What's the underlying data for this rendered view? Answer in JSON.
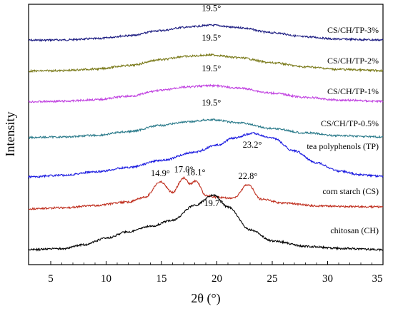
{
  "chart_data": {
    "type": "line",
    "title": "",
    "xlabel": "2θ (°)",
    "ylabel": "Intensity",
    "xlim": [
      3,
      35
    ],
    "xticks": [
      5,
      10,
      15,
      20,
      25,
      30,
      35
    ],
    "grid": false,
    "legend": "inline labels at right",
    "series": [
      {
        "name": "CS/CH/TP-3%",
        "color": "#1a1a80",
        "x": [
          3,
          6,
          9,
          12,
          15,
          17,
          19.5,
          22,
          25,
          28,
          31,
          35
        ],
        "y": [
          0.6,
          0.8,
          1.6,
          3.5,
          6.8,
          8.8,
          10.2,
          8.6,
          5.4,
          2.8,
          1.3,
          0.8
        ],
        "peaks": [
          {
            "x": 19.5,
            "label": "19.5°"
          }
        ]
      },
      {
        "name": "CS/CH/TP-2%",
        "color": "#7a7a1a",
        "x": [
          3,
          6,
          9,
          12,
          15,
          17,
          19.5,
          22,
          25,
          28,
          31,
          35
        ],
        "y": [
          0.5,
          0.8,
          1.8,
          4.0,
          7.8,
          9.8,
          10.8,
          9.0,
          5.8,
          3.2,
          1.6,
          0.8
        ],
        "peaks": [
          {
            "x": 19.5,
            "label": "19.5°"
          }
        ]
      },
      {
        "name": "CS/CH/TP-1%",
        "color": "#c040e0",
        "x": [
          3,
          6,
          9,
          12,
          15,
          17,
          19.5,
          22,
          25,
          28,
          31,
          35
        ],
        "y": [
          0.5,
          0.8,
          1.8,
          4.0,
          7.8,
          9.8,
          10.8,
          9.2,
          6.0,
          3.3,
          1.6,
          0.8
        ],
        "peaks": [
          {
            "x": 19.5,
            "label": "19.5°"
          }
        ]
      },
      {
        "name": "CS/CH/TP-0.5%",
        "color": "#2a7a8a",
        "x": [
          3,
          6,
          9,
          12,
          15,
          17,
          19.5,
          22,
          25,
          28,
          31,
          35
        ],
        "y": [
          0.5,
          0.8,
          1.8,
          4.2,
          8.2,
          10.2,
          11.8,
          9.8,
          6.2,
          3.4,
          1.6,
          0.8
        ],
        "peaks": [
          {
            "x": 19.5,
            "label": "19.5°"
          }
        ]
      },
      {
        "name": "tea polyphenols (TP)",
        "color": "#1a1ae0",
        "x": [
          3,
          6,
          9,
          12,
          15,
          18,
          20,
          21.5,
          23.2,
          25,
          27,
          29,
          31,
          33,
          35
        ],
        "y": [
          0.5,
          1.2,
          2.6,
          4.5,
          7.5,
          11.0,
          14.0,
          17.0,
          19.0,
          17.0,
          11.5,
          6.5,
          3.0,
          1.4,
          0.8
        ],
        "peaks": [
          {
            "x": 23.2,
            "label": "23.2°"
          }
        ]
      },
      {
        "name": "corn starch (CS)",
        "color": "#c03020",
        "x": [
          3,
          6,
          9,
          12,
          13.5,
          14.9,
          16,
          17,
          17.6,
          18.1,
          19,
          20,
          21.5,
          22.8,
          24,
          26,
          29,
          32,
          35
        ],
        "y": [
          0.5,
          1.0,
          2.2,
          4.0,
          6.5,
          14.5,
          9.0,
          16.5,
          13.5,
          15.0,
          7.5,
          6.5,
          6.0,
          13.0,
          5.5,
          3.5,
          2.0,
          1.6,
          1.5
        ],
        "peaks": [
          {
            "x": 14.9,
            "label": "14.9°"
          },
          {
            "x": 17.0,
            "label": "17.0°"
          },
          {
            "x": 18.1,
            "label": "18.1°"
          },
          {
            "x": 22.8,
            "label": "22.8°"
          }
        ]
      },
      {
        "name": "chitosan (CH)",
        "color": "#000000",
        "x": [
          3,
          6,
          8,
          10,
          12,
          14,
          16,
          18,
          19.7,
          21,
          23,
          25,
          28,
          31,
          35
        ],
        "y": [
          0.5,
          0.8,
          2.0,
          4.0,
          6.0,
          7.6,
          9.5,
          14.0,
          17.2,
          13.5,
          6.5,
          3.2,
          1.5,
          0.9,
          0.5
        ],
        "peaks": [
          {
            "x": 19.7,
            "label": "19.7°"
          }
        ]
      }
    ]
  }
}
